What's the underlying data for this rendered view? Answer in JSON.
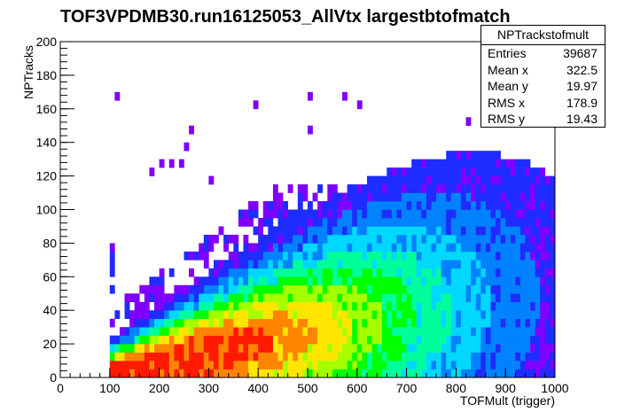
{
  "chart_data": {
    "type": "heatmap",
    "title": "TOF3VPDMB30.run16125053_AllVtx largestbtofmatch",
    "xlabel": "TOFMult (trigger)",
    "ylabel": "NPTracks",
    "xlim": [
      0,
      1000
    ],
    "ylim": [
      0,
      200
    ],
    "xticks": [
      "0",
      "100",
      "200",
      "300",
      "400",
      "500",
      "600",
      "700",
      "800",
      "900",
      "1000"
    ],
    "yticks": [
      "0",
      "20",
      "40",
      "60",
      "80",
      "100",
      "120",
      "140",
      "160",
      "180",
      "200"
    ],
    "bin_width": [
      10,
      5
    ],
    "colors": [
      "#7f00ff",
      "#1e2cff",
      "#0082ff",
      "#00d8ff",
      "#00ff9a",
      "#00ff00",
      "#a6ff00",
      "#ffe500",
      "#ff8400",
      "#ff1a00"
    ],
    "stats": {
      "name": "NPTrackstofmult",
      "entries": [
        "Entries",
        "39687"
      ],
      "mean_x": [
        "Mean x",
        "322.5"
      ],
      "mean_y": [
        "Mean y",
        "19.97"
      ],
      "rms_x": [
        "RMS x",
        "178.9"
      ],
      "rms_y": [
        "RMS y",
        "19.43"
      ]
    }
  }
}
